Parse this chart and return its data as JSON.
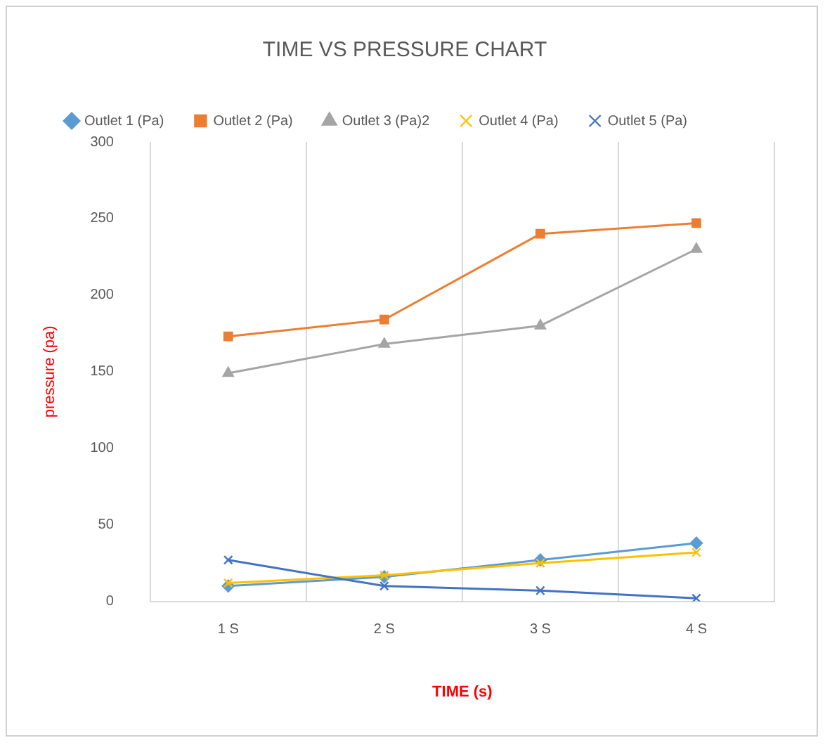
{
  "chart_data": {
    "type": "line",
    "title": "TIME VS PRESSURE CHART",
    "xlabel": "TIME (s)",
    "ylabel": "pressure (pa)",
    "categories": [
      "1 S",
      "2 S",
      "3 S",
      "4 S"
    ],
    "series": [
      {
        "name": "Outlet 1 (Pa)",
        "color": "#5b9bd5",
        "marker": "diamond",
        "values": [
          10,
          16,
          27,
          38
        ]
      },
      {
        "name": "Outlet 2 (Pa)",
        "color": "#ed7d31",
        "marker": "square",
        "values": [
          173,
          184,
          240,
          247
        ]
      },
      {
        "name": "Outlet 3 (Pa)2",
        "color": "#a5a5a5",
        "marker": "triangle",
        "values": [
          149,
          168,
          180,
          230
        ]
      },
      {
        "name": "Outlet 4 (Pa)",
        "color": "#ffc000",
        "marker": "cross",
        "values": [
          12,
          17,
          25,
          32
        ]
      },
      {
        "name": "Outlet 5 (Pa)",
        "color": "#4472c4",
        "marker": "cross",
        "values": [
          27,
          10,
          7,
          2
        ]
      }
    ],
    "ylim": [
      0,
      300
    ],
    "yticks": [
      0,
      50,
      100,
      150,
      200,
      250,
      300
    ],
    "grid": "x",
    "legend": "top",
    "line_style": "solid"
  }
}
